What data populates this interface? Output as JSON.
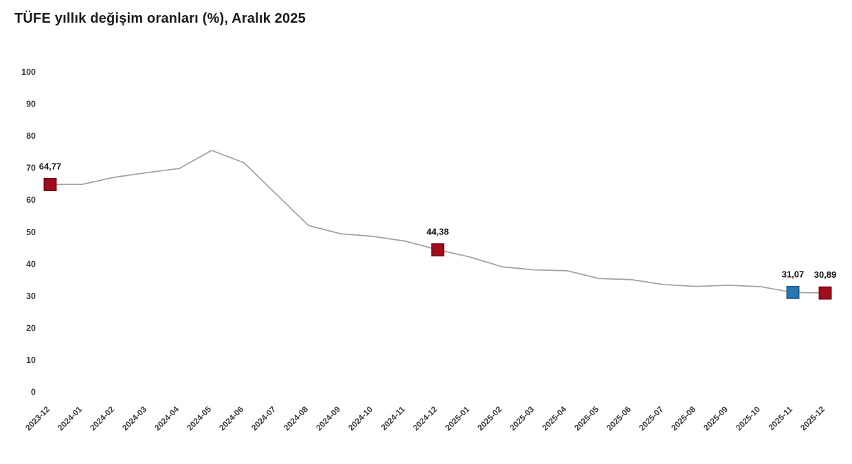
{
  "title": "TÜFE yıllık değişim oranları (%), Aralık 2025",
  "colors": {
    "background": "#ffffff",
    "title_text": "#1a1a1a",
    "tick_text": "#3c3c3c",
    "label_text": "#121212",
    "line": "#a3a3a3",
    "marker_red": "#a00d1c",
    "marker_red_border": "#7c0a15",
    "marker_blue": "#2878b0",
    "marker_blue_border": "#1d5f95"
  },
  "chart_data": {
    "type": "line",
    "title": "TÜFE yıllık değişim oranları (%), Aralık 2025",
    "xlabel": "",
    "ylabel": "",
    "ylim": [
      0,
      100
    ],
    "yticks": [
      0,
      10,
      20,
      30,
      40,
      50,
      60,
      70,
      80,
      90,
      100
    ],
    "grid": false,
    "legend": "none",
    "x": [
      "2023-12",
      "2024-01",
      "2024-02",
      "2024-03",
      "2024-04",
      "2024-05",
      "2024-06",
      "2024-07",
      "2024-08",
      "2024-09",
      "2024-10",
      "2024-11",
      "2024-12",
      "2025-01",
      "2025-02",
      "2025-03",
      "2025-04",
      "2025-05",
      "2025-06",
      "2025-07",
      "2025-08",
      "2025-09",
      "2025-10",
      "2025-11",
      "2025-12"
    ],
    "values": [
      64.77,
      64.86,
      67.07,
      68.5,
      69.8,
      75.45,
      71.6,
      61.78,
      51.97,
      49.38,
      48.58,
      47.09,
      44.38,
      42.12,
      39.05,
      38.1,
      37.86,
      35.41,
      35.05,
      33.52,
      32.95,
      33.29,
      32.87,
      31.07,
      30.89
    ],
    "annotated_points": [
      {
        "x": "2023-12",
        "value": 64.77,
        "label": "64,77",
        "marker": "square",
        "color": "#a00d1c",
        "border": "#7c0a15"
      },
      {
        "x": "2024-12",
        "value": 44.38,
        "label": "44,38",
        "marker": "square",
        "color": "#a00d1c",
        "border": "#7c0a15"
      },
      {
        "x": "2025-11",
        "value": 31.07,
        "label": "31,07",
        "marker": "square",
        "color": "#2878b0",
        "border": "#1d5f95"
      },
      {
        "x": "2025-12",
        "value": 30.89,
        "label": "30,89",
        "marker": "square",
        "color": "#a00d1c",
        "border": "#7c0a15"
      }
    ]
  }
}
